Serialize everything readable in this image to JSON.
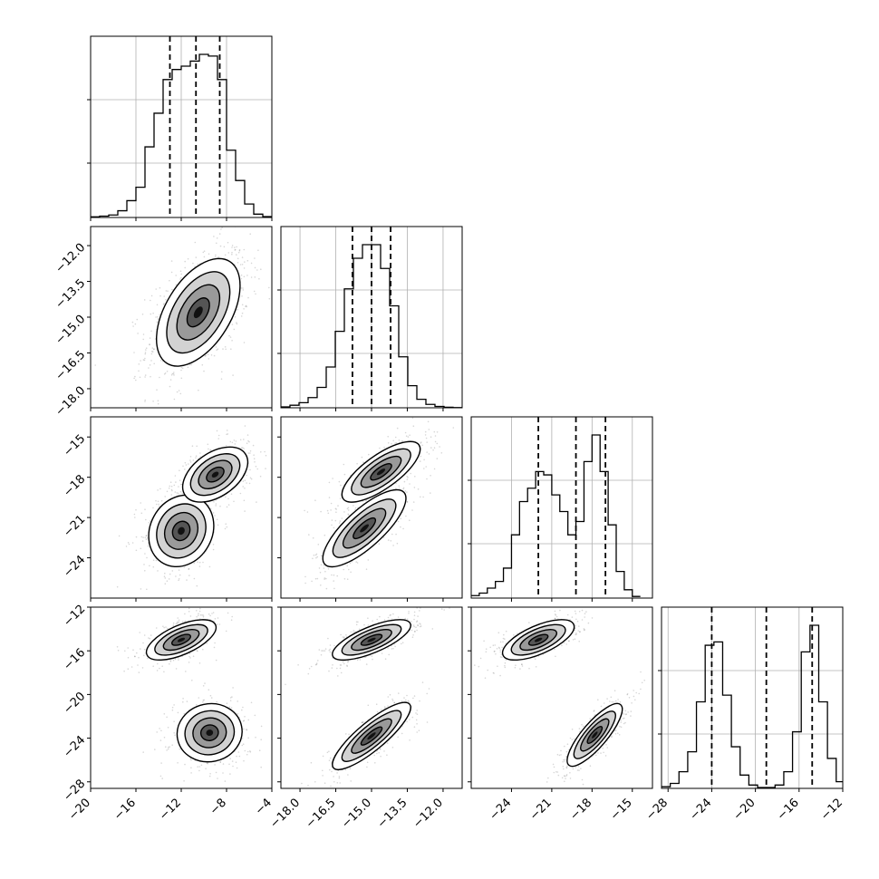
{
  "chart_data": {
    "type": "scatter",
    "title": "",
    "dimensions": 4,
    "grid": true,
    "histogram_style": "step",
    "quantile_lines": "dashed",
    "parameters": [
      {
        "range": [
          -20,
          -4
        ],
        "ticks": [
          -20,
          -16,
          -12,
          -8,
          -4
        ],
        "tick_labels": [
          "−20",
          "−16",
          "−12",
          "−8",
          "−4"
        ],
        "quantiles": [
          -13.0,
          -10.7,
          -8.6
        ],
        "histogram": {
          "edges": [
            -20,
            -19.2,
            -18.4,
            -17.6,
            -16.8,
            -16,
            -15.2,
            -14.4,
            -13.6,
            -12.8,
            -12,
            -11.2,
            -10.4,
            -9.6,
            -8.8,
            -8,
            -7.2,
            -6.4,
            -5.6,
            -4.8,
            -4
          ],
          "counts": [
            0.004,
            0.008,
            0.015,
            0.04,
            0.1,
            0.18,
            0.42,
            0.62,
            0.82,
            0.88,
            0.9,
            0.93,
            0.97,
            0.96,
            0.82,
            0.4,
            0.22,
            0.08,
            0.02,
            0.005
          ]
        }
      },
      {
        "range": [
          -18.8,
          -11.2
        ],
        "ticks": [
          -18.0,
          -16.5,
          -15.0,
          -13.5,
          -12.0
        ],
        "tick_labels": [
          "−18.0",
          "−16.5",
          "−15.0",
          "−13.5",
          "−12.0"
        ],
        "quantiles": [
          -15.8,
          -15.0,
          -14.2
        ],
        "histogram": {
          "edges": [
            -18.8,
            -18.42,
            -18.04,
            -17.66,
            -17.28,
            -16.9,
            -16.52,
            -16.14,
            -15.76,
            -15.38,
            -15,
            -14.62,
            -14.24,
            -13.86,
            -13.48,
            -13.1,
            -12.72,
            -12.34,
            -11.96,
            -11.58,
            -11.2
          ],
          "counts": [
            0.005,
            0.015,
            0.03,
            0.06,
            0.12,
            0.24,
            0.45,
            0.7,
            0.88,
            0.96,
            0.96,
            0.82,
            0.6,
            0.3,
            0.13,
            0.05,
            0.02,
            0.008,
            0.003,
            0.001
          ]
        }
      },
      {
        "range": [
          -27,
          -13.5
        ],
        "ticks": [
          -24,
          -21,
          -18,
          -15
        ],
        "tick_labels": [
          "−24",
          "−21",
          "−18",
          "−15"
        ],
        "quantiles": [
          -22.0,
          -19.2,
          -17.0
        ],
        "histogram": {
          "edges": [
            -27,
            -26.4,
            -25.8,
            -25.2,
            -24.6,
            -24,
            -23.4,
            -22.8,
            -22.2,
            -21.6,
            -21,
            -20.4,
            -19.8,
            -19.2,
            -18.6,
            -18,
            -17.4,
            -16.8,
            -16.2,
            -15.6,
            -15,
            -14.4
          ],
          "counts": [
            0.015,
            0.03,
            0.06,
            0.1,
            0.18,
            0.38,
            0.58,
            0.66,
            0.76,
            0.74,
            0.62,
            0.52,
            0.38,
            0.46,
            0.82,
            0.98,
            0.76,
            0.44,
            0.16,
            0.05,
            0.01
          ]
        }
      },
      {
        "range": [
          -28.6,
          -12
        ],
        "ticks": [
          -28,
          -24,
          -20,
          -16,
          -12
        ],
        "tick_labels": [
          "−28",
          "−24",
          "−20",
          "−16",
          "−12"
        ],
        "quantiles": [
          -24.0,
          -19.0,
          -14.8
        ],
        "histogram": {
          "edges": [
            -28.6,
            -27.8,
            -27,
            -26.2,
            -25.4,
            -24.6,
            -23.8,
            -23,
            -22.2,
            -21.4,
            -20.6,
            -19.8,
            -19,
            -18.2,
            -17.4,
            -16.6,
            -15.8,
            -15,
            -14.2,
            -13.4,
            -12.6,
            -12
          ],
          "counts": [
            0.01,
            0.03,
            0.1,
            0.22,
            0.52,
            0.86,
            0.88,
            0.56,
            0.25,
            0.08,
            0.02,
            0.005,
            0.005,
            0.02,
            0.1,
            0.34,
            0.82,
            0.98,
            0.52,
            0.18,
            0.04
          ]
        }
      }
    ],
    "modes_2d": [
      {
        "x_param": 0,
        "y_param": 1,
        "modes": [
          {
            "center": [
              -10.5,
              -14.8
            ],
            "sd": [
              1.8,
              1.1
            ],
            "corr": 0.5,
            "weight": 1.0
          }
        ]
      },
      {
        "x_param": 0,
        "y_param": 2,
        "modes": [
          {
            "center": [
              -12.0,
              -22.0
            ],
            "sd": [
              1.4,
              1.3
            ],
            "corr": 0.15,
            "weight": 0.5
          },
          {
            "center": [
              -9.0,
              -17.8
            ],
            "sd": [
              1.4,
              1.0
            ],
            "corr": 0.45,
            "weight": 0.5
          }
        ]
      },
      {
        "x_param": 1,
        "y_param": 2,
        "modes": [
          {
            "center": [
              -15.3,
              -21.8
            ],
            "sd": [
              0.85,
              1.4
            ],
            "corr": 0.78,
            "weight": 0.5
          },
          {
            "center": [
              -14.6,
              -17.6
            ],
            "sd": [
              0.8,
              1.1
            ],
            "corr": 0.75,
            "weight": 0.5
          }
        ]
      },
      {
        "x_param": 0,
        "y_param": 3,
        "modes": [
          {
            "center": [
              -12.0,
              -15.0
            ],
            "sd": [
              1.5,
              0.9
            ],
            "corr": 0.62,
            "weight": 0.5
          },
          {
            "center": [
              -9.5,
              -23.5
            ],
            "sd": [
              1.4,
              1.3
            ],
            "corr": 0.05,
            "weight": 0.5
          }
        ]
      },
      {
        "x_param": 1,
        "y_param": 3,
        "modes": [
          {
            "center": [
              -15.0,
              -15.0
            ],
            "sd": [
              0.8,
              0.9
            ],
            "corr": 0.72,
            "weight": 0.5
          },
          {
            "center": [
              -15.0,
              -23.8
            ],
            "sd": [
              0.8,
              1.5
            ],
            "corr": 0.85,
            "weight": 0.5
          }
        ]
      },
      {
        "x_param": 2,
        "y_param": 3,
        "modes": [
          {
            "center": [
              -22.0,
              -15.0
            ],
            "sd": [
              1.3,
              0.9
            ],
            "corr": 0.65,
            "weight": 0.5
          },
          {
            "center": [
              -17.8,
              -23.7
            ],
            "sd": [
              1.0,
              1.4
            ],
            "corr": 0.82,
            "weight": 0.5
          }
        ]
      }
    ]
  }
}
